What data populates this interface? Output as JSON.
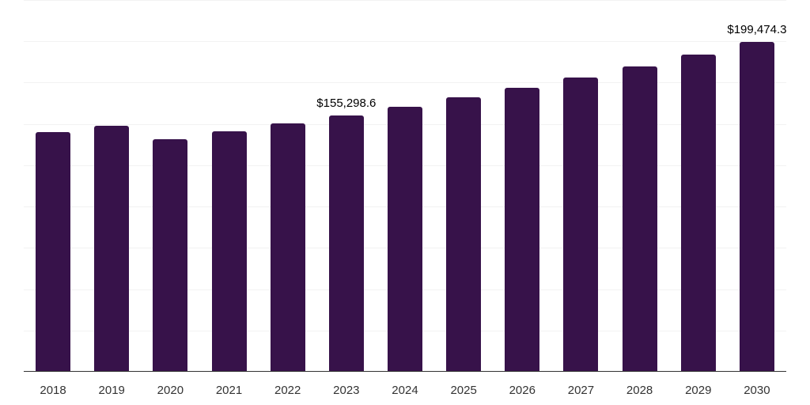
{
  "chart_data": {
    "type": "bar",
    "title": "",
    "xlabel": "",
    "ylabel": "",
    "categories": [
      "2018",
      "2019",
      "2020",
      "2021",
      "2022",
      "2023",
      "2024",
      "2025",
      "2026",
      "2027",
      "2028",
      "2029",
      "2030"
    ],
    "values": [
      145260,
      149100,
      140900,
      145700,
      150500,
      155298.6,
      160600,
      165900,
      172100,
      178300,
      185000,
      191800,
      199474.3
    ],
    "annotations": [
      {
        "category": "2023",
        "label": "$155,298.6"
      },
      {
        "category": "2030",
        "label": "$199,474.3"
      }
    ],
    "ylim": [
      0,
      225000
    ],
    "grid_step": 25000,
    "grid": true,
    "y_tick_labels_visible": false,
    "legend": null,
    "colors": {
      "bar": "#37124a",
      "axis": "#333333",
      "grid": "#f2f2f2",
      "label": "#333333"
    }
  }
}
